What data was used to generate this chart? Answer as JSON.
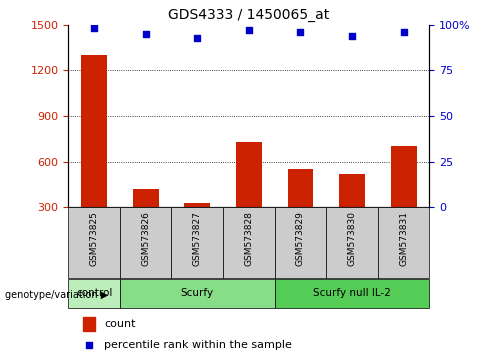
{
  "title": "GDS4333 / 1450065_at",
  "samples": [
    "GSM573825",
    "GSM573826",
    "GSM573827",
    "GSM573828",
    "GSM573829",
    "GSM573830",
    "GSM573831"
  ],
  "counts": [
    1300,
    420,
    330,
    730,
    550,
    520,
    700
  ],
  "percentiles": [
    98,
    95,
    93,
    97,
    96,
    94,
    96
  ],
  "bar_color": "#cc2200",
  "dot_color": "#0000cc",
  "ylim_left": [
    300,
    1500
  ],
  "ylim_right": [
    0,
    100
  ],
  "yticks_left": [
    300,
    600,
    900,
    1200,
    1500
  ],
  "yticks_right": [
    0,
    25,
    50,
    75,
    100
  ],
  "groups": [
    {
      "label": "control",
      "start": 0,
      "end": 1,
      "color": "#bbeebb"
    },
    {
      "label": "Scurfy",
      "start": 1,
      "end": 4,
      "color": "#88dd88"
    },
    {
      "label": "Scurfy null IL-2",
      "start": 4,
      "end": 7,
      "color": "#55cc55"
    }
  ],
  "group_label_prefix": "genotype/variation",
  "legend_count_label": "count",
  "legend_percentile_label": "percentile rank within the sample",
  "bar_width": 0.5,
  "grid_color": "#000000",
  "tick_label_color_left": "#cc2200",
  "tick_label_color_right": "#0000cc",
  "sample_box_color": "#cccccc",
  "fig_bg": "#ffffff"
}
